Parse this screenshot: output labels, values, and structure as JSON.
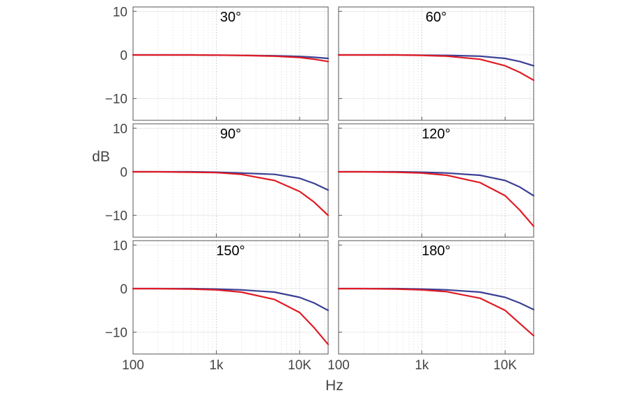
{
  "chart_data": {
    "type": "line",
    "xscale": "log",
    "xlim": [
      100,
      22000
    ],
    "ylim": [
      -15,
      11
    ],
    "xlabel": "Hz",
    "ylabel": "dB",
    "xticks": [
      {
        "value": 100,
        "label": "100"
      },
      {
        "value": 1000,
        "label": "1k"
      },
      {
        "value": 10000,
        "label": "10K"
      }
    ],
    "yticks": [
      {
        "value": 10,
        "label": "10"
      },
      {
        "value": 0,
        "label": "0"
      },
      {
        "value": -10,
        "label": "−10"
      }
    ],
    "grid": true,
    "colors": {
      "blue": "#3a3f94",
      "red": "#e01b24"
    },
    "panels": [
      {
        "title": "30°",
        "series": [
          {
            "color": "blue",
            "x": [
              100,
              200,
              500,
              1000,
              2000,
              5000,
              10000,
              15000,
              22000
            ],
            "y": [
              0,
              0,
              0,
              -0.05,
              -0.1,
              -0.2,
              -0.35,
              -0.55,
              -0.8
            ]
          },
          {
            "color": "red",
            "x": [
              100,
              200,
              500,
              1000,
              2000,
              5000,
              10000,
              15000,
              22000
            ],
            "y": [
              0,
              0,
              0,
              -0.05,
              -0.1,
              -0.3,
              -0.6,
              -1.0,
              -1.5
            ]
          }
        ]
      },
      {
        "title": "60°",
        "series": [
          {
            "color": "blue",
            "x": [
              100,
              200,
              500,
              1000,
              2000,
              5000,
              10000,
              15000,
              22000
            ],
            "y": [
              0,
              0,
              0,
              -0.05,
              -0.1,
              -0.3,
              -0.8,
              -1.5,
              -2.5
            ]
          },
          {
            "color": "red",
            "x": [
              100,
              200,
              500,
              1000,
              2000,
              5000,
              10000,
              15000,
              22000
            ],
            "y": [
              0,
              0,
              0,
              -0.1,
              -0.3,
              -1.0,
              -2.5,
              -4.0,
              -5.8
            ]
          }
        ]
      },
      {
        "title": "90°",
        "series": [
          {
            "color": "blue",
            "x": [
              100,
              200,
              500,
              1000,
              2000,
              5000,
              10000,
              15000,
              22000
            ],
            "y": [
              0,
              0,
              0,
              -0.1,
              -0.3,
              -0.6,
              -1.5,
              -2.7,
              -4.2
            ]
          },
          {
            "color": "red",
            "x": [
              100,
              200,
              500,
              1000,
              2000,
              5000,
              10000,
              15000,
              22000
            ],
            "y": [
              0,
              0,
              -0.1,
              -0.2,
              -0.6,
              -2.0,
              -4.5,
              -7.0,
              -10.0
            ]
          }
        ]
      },
      {
        "title": "120°",
        "series": [
          {
            "color": "blue",
            "x": [
              100,
              200,
              500,
              1000,
              2000,
              5000,
              10000,
              15000,
              22000
            ],
            "y": [
              0,
              0,
              0,
              -0.1,
              -0.3,
              -0.8,
              -2.0,
              -3.5,
              -5.5
            ]
          },
          {
            "color": "red",
            "x": [
              100,
              200,
              500,
              1000,
              2000,
              5000,
              10000,
              15000,
              22000
            ],
            "y": [
              0,
              0,
              -0.1,
              -0.3,
              -0.8,
              -2.5,
              -5.5,
              -8.8,
              -12.5
            ]
          }
        ]
      },
      {
        "title": "150°",
        "series": [
          {
            "color": "blue",
            "x": [
              100,
              200,
              500,
              1000,
              2000,
              5000,
              10000,
              15000,
              22000
            ],
            "y": [
              0,
              0,
              0,
              -0.1,
              -0.3,
              -0.8,
              -2.0,
              -3.3,
              -5.0
            ]
          },
          {
            "color": "red",
            "x": [
              100,
              200,
              500,
              1000,
              2000,
              5000,
              10000,
              15000,
              22000
            ],
            "y": [
              0,
              0,
              -0.1,
              -0.3,
              -0.8,
              -2.5,
              -5.5,
              -9.0,
              -12.8
            ]
          }
        ]
      },
      {
        "title": "180°",
        "series": [
          {
            "color": "blue",
            "x": [
              100,
              200,
              500,
              1000,
              2000,
              5000,
              10000,
              15000,
              22000
            ],
            "y": [
              0,
              0,
              0,
              -0.1,
              -0.3,
              -0.8,
              -2.0,
              -3.3,
              -4.8
            ]
          },
          {
            "color": "red",
            "x": [
              100,
              200,
              500,
              1000,
              2000,
              5000,
              10000,
              15000,
              22000
            ],
            "y": [
              0,
              0,
              -0.1,
              -0.3,
              -0.7,
              -2.2,
              -5.0,
              -8.0,
              -10.8
            ]
          }
        ]
      }
    ]
  }
}
